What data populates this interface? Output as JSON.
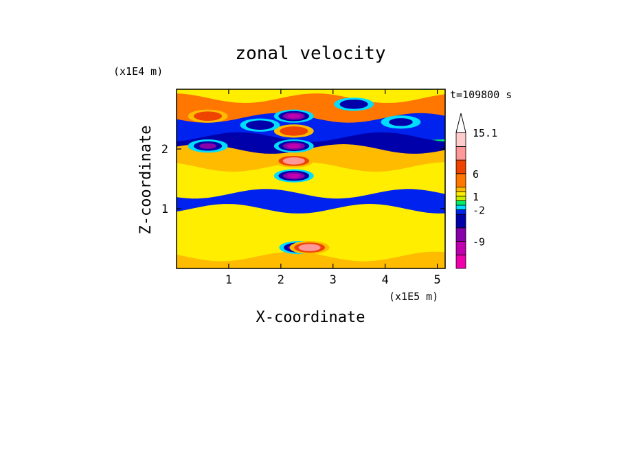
{
  "chart_data": {
    "type": "heatmap",
    "title": "zonal velocity",
    "xlabel": "X-coordinate",
    "ylabel": "Z-coordinate",
    "x_unit": "(x1E5 m)",
    "y_unit": "(x1E4 m)",
    "time_label": "t=109800 s",
    "xlim": [
      0,
      5.15
    ],
    "ylim": [
      0,
      3.0
    ],
    "x_ticks": [
      "1",
      "2",
      "3",
      "4",
      "5"
    ],
    "x_tick_values": [
      1,
      2,
      3,
      4,
      5
    ],
    "y_ticks": [
      "1",
      "2"
    ],
    "y_tick_values": [
      1,
      2
    ],
    "colorbar": {
      "levels": [
        -15,
        -12,
        -9,
        -6,
        -3,
        -2,
        -1,
        0,
        1,
        2,
        3,
        6,
        9,
        12,
        15.1
      ],
      "labels": [
        "15.1",
        "6",
        "1",
        "-2",
        "-9"
      ],
      "label_values": [
        15.1,
        6,
        1,
        -2,
        -9
      ],
      "colors": [
        "#ee00aa",
        "#c000b0",
        "#8800aa",
        "#0000aa",
        "#0022ee",
        "#00ddff",
        "#00ee66",
        "#ccee00",
        "#ffee00",
        "#ffbb00",
        "#ff7700",
        "#ee4400",
        "#ff9999",
        "#ffcccc"
      ],
      "extend": "max"
    },
    "features": [
      {
        "x": 2.25,
        "z": 2.55,
        "u": -10
      },
      {
        "x": 2.25,
        "z": 2.05,
        "u": -10
      },
      {
        "x": 2.25,
        "z": 1.55,
        "u": -11
      },
      {
        "x": 2.25,
        "z": 2.3,
        "u": 8
      },
      {
        "x": 2.25,
        "z": 1.8,
        "u": 9
      },
      {
        "x": 0.6,
        "z": 2.05,
        "u": -8
      },
      {
        "x": 0.6,
        "z": 2.55,
        "u": 6
      },
      {
        "x": 1.6,
        "z": 2.4,
        "u": -6
      },
      {
        "x": 3.4,
        "z": 2.75,
        "u": -6
      },
      {
        "x": 4.3,
        "z": 2.45,
        "u": -5
      },
      {
        "x": 2.35,
        "z": 0.35,
        "u": -12
      },
      {
        "x": 2.55,
        "z": 0.35,
        "u": 10
      }
    ]
  }
}
